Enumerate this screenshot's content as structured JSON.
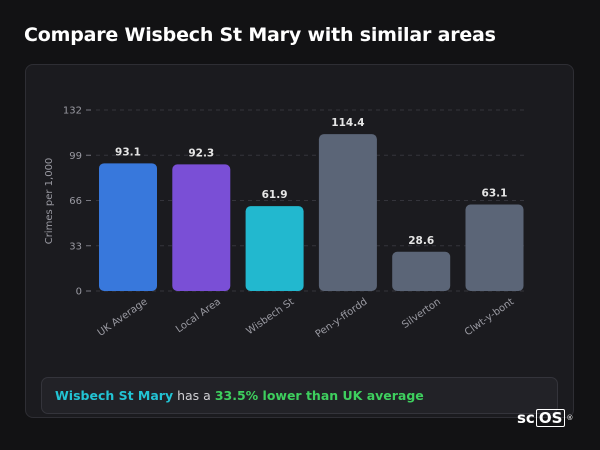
{
  "header": {
    "title": "Compare Wisbech St Mary with similar areas"
  },
  "summary": {
    "area": "Wisbech St Mary",
    "text1": " has a ",
    "stat": "33.5% lower than UK average"
  },
  "logo": {
    "text": "sc",
    "boxed": "OS",
    "mark": "®"
  },
  "colors": {
    "background": "#121214",
    "card": "#1b1b1f",
    "uk_average": "#3878dc",
    "local_area": "#7a4fd6",
    "wisbech": "#22b8cf",
    "other": "#5b6577",
    "highlight_area": "#22c4d4",
    "highlight_stat": "#3ecf5e"
  },
  "chart_data": {
    "type": "bar",
    "title": "",
    "xlabel": "",
    "ylabel": "Crimes per 1,000",
    "ylim": [
      0,
      132
    ],
    "yticks": [
      0,
      33,
      66,
      99,
      132
    ],
    "grid": true,
    "categories": [
      "UK Average",
      "Local Area",
      "Wisbech St",
      "Pen-y-ffordd",
      "Silverton",
      "Clwt-y-bont"
    ],
    "values": [
      93.1,
      92.3,
      61.9,
      114.4,
      28.6,
      63.1
    ],
    "value_labels": [
      "93.1",
      "92.3",
      "61.9",
      "114.4",
      "28.6",
      "63.1"
    ],
    "bar_colors": [
      "#3878dc",
      "#7a4fd6",
      "#22b8cf",
      "#5b6577",
      "#5b6577",
      "#5b6577"
    ]
  }
}
